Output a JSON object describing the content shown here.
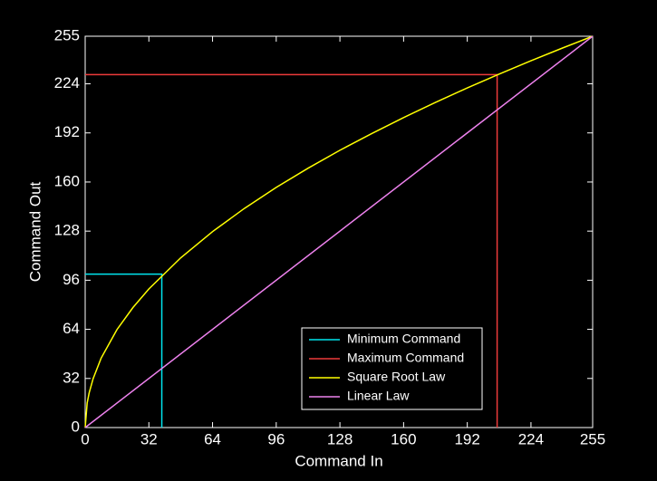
{
  "chart_data": {
    "type": "line",
    "xlabel": "Command In",
    "ylabel": "Command Out",
    "xlim": [
      0,
      255
    ],
    "ylim": [
      0,
      255
    ],
    "xticks": [
      0,
      32,
      64,
      96,
      128,
      160,
      192,
      224,
      255
    ],
    "yticks": [
      0,
      32,
      64,
      96,
      128,
      160,
      192,
      224,
      255
    ],
    "grid": false,
    "legend": "lower right",
    "series": [
      {
        "name": "Minimum Command",
        "color": "#00e5ee",
        "x": [
          0,
          38.5,
          38.5
        ],
        "values": [
          100,
          100,
          0
        ]
      },
      {
        "name": "Maximum Command",
        "color": "#ee3b3b",
        "x": [
          0,
          207,
          207
        ],
        "values": [
          230,
          230,
          0
        ]
      },
      {
        "name": "Square Root Law",
        "color": "#ffff00",
        "x": [
          0,
          1,
          2,
          4,
          8,
          16,
          24,
          32,
          48,
          64,
          80,
          96,
          112,
          128,
          144,
          160,
          176,
          192,
          208,
          224,
          240,
          255
        ],
        "values": [
          0,
          16.0,
          22.6,
          31.9,
          45.2,
          63.9,
          78.2,
          90.3,
          110.6,
          127.7,
          142.8,
          156.5,
          169.0,
          180.7,
          191.6,
          202.0,
          211.9,
          221.3,
          230.3,
          239.0,
          247.4,
          255
        ]
      },
      {
        "name": "Linear Law",
        "color": "#ee82ee",
        "x": [
          0,
          255
        ],
        "values": [
          0,
          255
        ]
      }
    ]
  }
}
